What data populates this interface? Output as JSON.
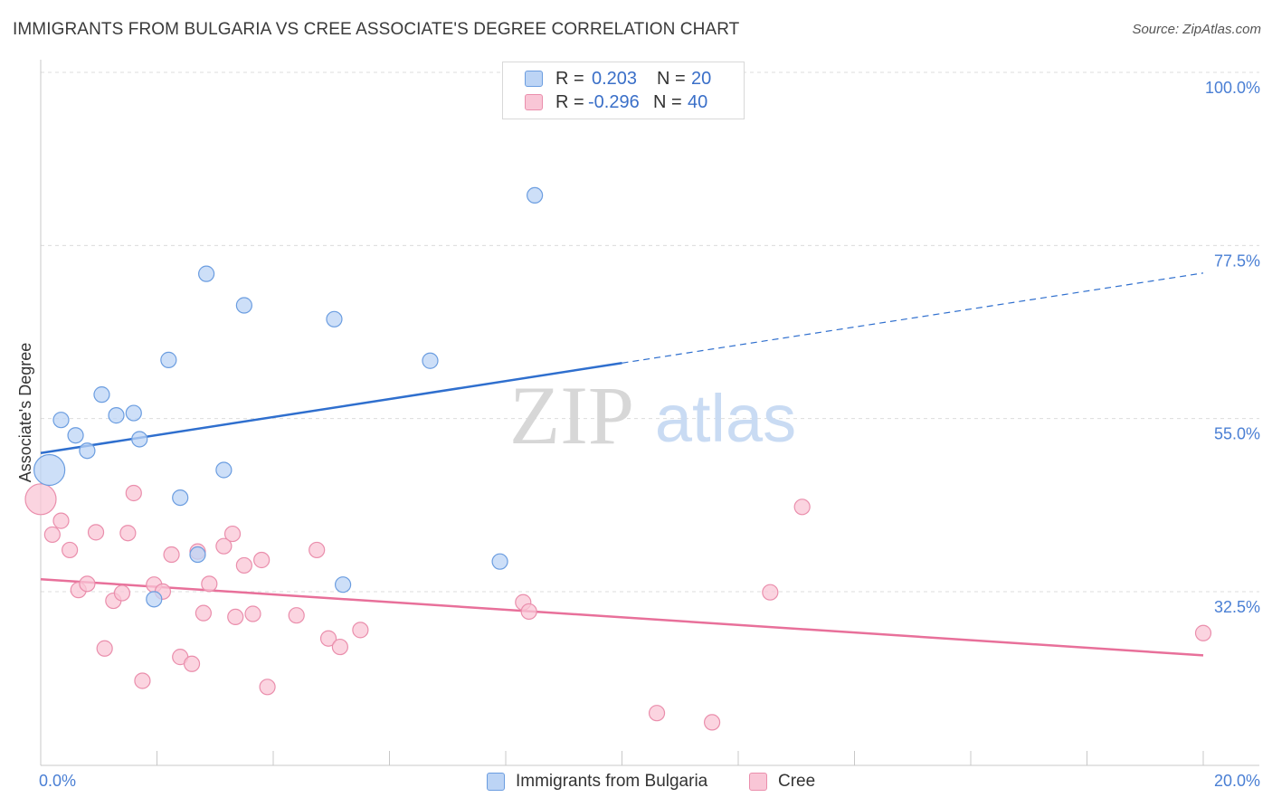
{
  "header": {
    "title": "IMMIGRANTS FROM BULGARIA VS CREE ASSOCIATE'S DEGREE CORRELATION CHART",
    "source": "Source: ZipAtlas.com"
  },
  "legend": {
    "rows": [
      {
        "r_label": "R =",
        "r_value": "0.203",
        "n_label": "N =",
        "n_value": "20"
      },
      {
        "r_label": "R =",
        "r_value": "-0.296",
        "n_label": "N =",
        "n_value": "40"
      }
    ]
  },
  "bottom_legend": {
    "series1": "Immigrants from Bulgaria",
    "series2": "Cree"
  },
  "watermark": {
    "zip": "ZIP",
    "atlas": "atlas"
  },
  "colors": {
    "bulgaria_fill": "#bcd4f5",
    "bulgaria_stroke": "#6b9de0",
    "bulgaria_line": "#2f6fce",
    "cree_fill": "#f9c6d6",
    "cree_stroke": "#ea8eac",
    "cree_line": "#e8709a",
    "tick_text": "#4a7fd4",
    "grid": "#dcdcdc"
  },
  "chart_data": {
    "type": "scatter",
    "title": "IMMIGRANTS FROM BULGARIA VS CREE ASSOCIATE'S DEGREE CORRELATION CHART",
    "xlabel": "",
    "ylabel": "Associate's Degree",
    "xlim": [
      0,
      20
    ],
    "ylim": [
      10,
      102
    ],
    "x_tick_labels": [
      "0.0%",
      "20.0%"
    ],
    "y_ticks": [
      32.5,
      55.0,
      77.5,
      100.0
    ],
    "y_tick_labels": [
      "32.5%",
      "55.0%",
      "77.5%",
      "100.0%"
    ],
    "grid": true,
    "series": [
      {
        "name": "Immigrants from Bulgaria",
        "R": 0.203,
        "N": 20,
        "points": [
          {
            "x": 0.15,
            "y": 50.2,
            "big": true
          },
          {
            "x": 0.35,
            "y": 56.7
          },
          {
            "x": 0.6,
            "y": 54.7
          },
          {
            "x": 0.8,
            "y": 52.7
          },
          {
            "x": 1.05,
            "y": 60.0
          },
          {
            "x": 1.3,
            "y": 57.3
          },
          {
            "x": 1.6,
            "y": 57.6
          },
          {
            "x": 1.7,
            "y": 54.2
          },
          {
            "x": 2.2,
            "y": 64.5
          },
          {
            "x": 2.4,
            "y": 46.6
          },
          {
            "x": 2.7,
            "y": 39.2
          },
          {
            "x": 2.85,
            "y": 75.7
          },
          {
            "x": 3.15,
            "y": 50.2
          },
          {
            "x": 3.5,
            "y": 71.6
          },
          {
            "x": 5.05,
            "y": 69.8
          },
          {
            "x": 5.2,
            "y": 35.3
          },
          {
            "x": 6.7,
            "y": 64.4
          },
          {
            "x": 7.9,
            "y": 38.3
          },
          {
            "x": 8.5,
            "y": 85.9
          },
          {
            "x": 1.95,
            "y": 33.4
          }
        ],
        "trend": {
          "x0": 0,
          "y0": 52.4,
          "x_solid_end": 10.0,
          "y_solid_end": 64.1,
          "x1": 20,
          "y1": 75.8
        }
      },
      {
        "name": "Cree",
        "R": -0.296,
        "N": 40,
        "points": [
          {
            "x": 0.0,
            "y": 46.4,
            "big": true
          },
          {
            "x": 0.2,
            "y": 41.8
          },
          {
            "x": 0.35,
            "y": 43.6
          },
          {
            "x": 0.5,
            "y": 39.8
          },
          {
            "x": 0.65,
            "y": 34.6
          },
          {
            "x": 0.8,
            "y": 35.4
          },
          {
            "x": 0.95,
            "y": 42.1
          },
          {
            "x": 1.1,
            "y": 27.0
          },
          {
            "x": 1.25,
            "y": 33.2
          },
          {
            "x": 1.4,
            "y": 34.2
          },
          {
            "x": 1.5,
            "y": 42.0
          },
          {
            "x": 1.6,
            "y": 47.2
          },
          {
            "x": 1.75,
            "y": 22.8
          },
          {
            "x": 1.95,
            "y": 35.3
          },
          {
            "x": 2.1,
            "y": 34.4
          },
          {
            "x": 2.25,
            "y": 39.2
          },
          {
            "x": 2.4,
            "y": 25.9
          },
          {
            "x": 2.6,
            "y": 25.0
          },
          {
            "x": 2.7,
            "y": 39.6
          },
          {
            "x": 2.8,
            "y": 31.6
          },
          {
            "x": 2.9,
            "y": 35.4
          },
          {
            "x": 3.15,
            "y": 40.3
          },
          {
            "x": 3.3,
            "y": 41.9
          },
          {
            "x": 3.35,
            "y": 31.1
          },
          {
            "x": 3.5,
            "y": 37.8
          },
          {
            "x": 3.65,
            "y": 31.5
          },
          {
            "x": 3.8,
            "y": 38.5
          },
          {
            "x": 3.9,
            "y": 22.0
          },
          {
            "x": 4.4,
            "y": 31.3
          },
          {
            "x": 4.75,
            "y": 39.8
          },
          {
            "x": 4.95,
            "y": 28.3
          },
          {
            "x": 5.15,
            "y": 27.2
          },
          {
            "x": 5.5,
            "y": 29.4
          },
          {
            "x": 8.3,
            "y": 33.0
          },
          {
            "x": 8.4,
            "y": 31.8
          },
          {
            "x": 10.6,
            "y": 18.6
          },
          {
            "x": 11.55,
            "y": 17.4
          },
          {
            "x": 12.55,
            "y": 34.3
          },
          {
            "x": 13.1,
            "y": 45.4
          },
          {
            "x": 20.0,
            "y": 29.0
          }
        ],
        "trend": {
          "x0": 0,
          "y0": 36.0,
          "x1": 20,
          "y1": 26.1
        }
      }
    ]
  }
}
